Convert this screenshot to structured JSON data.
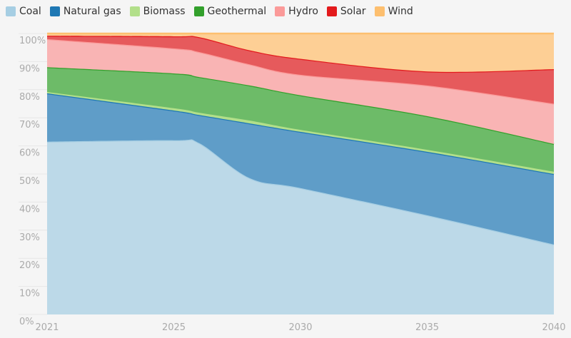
{
  "chart_data": {
    "type": "area",
    "stacked": true,
    "title": "",
    "xlabel": "",
    "ylabel": "",
    "x": [
      2021,
      2025,
      2026,
      2028,
      2030,
      2035,
      2040
    ],
    "x_ticks": [
      "2021",
      "2025",
      "2030",
      "2035",
      "2040"
    ],
    "y_ticks": [
      "0%",
      "10%",
      "20%",
      "30%",
      "40%",
      "50%",
      "60%",
      "70%",
      "80%",
      "90%",
      "100%"
    ],
    "ylim": [
      0,
      100
    ],
    "grid": true,
    "legend_position": "top-left",
    "series": [
      {
        "name": "Coal",
        "fill": "#bcd9e8",
        "line": "#a6cee3",
        "values": [
          61.5,
          62,
          61,
          48.5,
          45,
          35.3,
          24.9
        ]
      },
      {
        "name": "Natural gas",
        "fill": "#5f9dc8",
        "line": "#1f78b4",
        "values": [
          17.2,
          10.6,
          10,
          19.5,
          20,
          22.6,
          25.1
        ]
      },
      {
        "name": "Biomass",
        "fill": "#b2df8a",
        "line": "#b2df8a",
        "values": [
          0.5,
          0.8,
          0.8,
          1,
          0.7,
          0.7,
          0.8
        ]
      },
      {
        "name": "Geothermal",
        "fill": "#6dbb68",
        "line": "#33a02c",
        "values": [
          8.8,
          12.4,
          12.7,
          12.5,
          12.3,
          12,
          9.9
        ]
      },
      {
        "name": "Hydro",
        "fill": "#f9b4b4",
        "line": "#fb9a99",
        "values": [
          10,
          8.9,
          8.9,
          7.5,
          7.3,
          10.9,
          14.3
        ]
      },
      {
        "name": "Solar",
        "fill": "#e65a5c",
        "line": "#e31a1c",
        "values": [
          1.2,
          4.3,
          5.3,
          5,
          5.7,
          5,
          12.3
        ]
      },
      {
        "name": "Wind",
        "fill": "#fdcf95",
        "line": "#fdbf6f",
        "values": [
          0.8,
          1,
          1.3,
          6,
          9,
          13.5,
          12.7
        ]
      }
    ]
  }
}
